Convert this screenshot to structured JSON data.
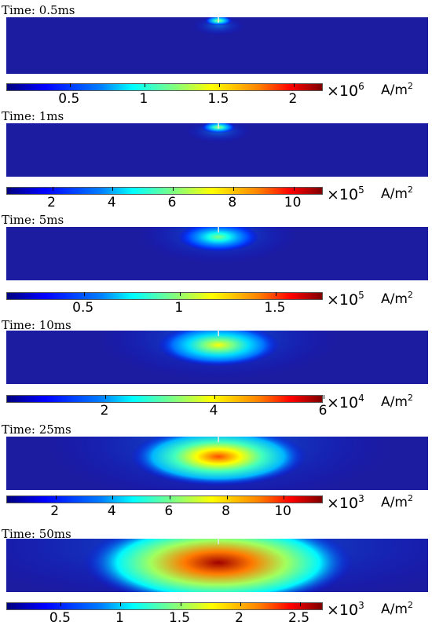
{
  "unit": {
    "base": "A/m",
    "exp": "2"
  },
  "panels": [
    {
      "time": "Time: 0.5ms",
      "mult_base": "×10",
      "mult_exp": "6",
      "ticks": [
        "0.5",
        "1",
        "1.5",
        "2"
      ],
      "tick_values": [
        0.5,
        1,
        1.5,
        2
      ],
      "range": [
        0.08,
        2.2
      ],
      "spot": {
        "intensity": 0.55,
        "rx_frac": 0.02,
        "ry_frac": 0.08
      }
    },
    {
      "time": "Time: 1ms",
      "mult_base": "×10",
      "mult_exp": "5",
      "ticks": [
        "2",
        "4",
        "6",
        "8",
        "10"
      ],
      "tick_values": [
        2,
        4,
        6,
        8,
        10
      ],
      "range": [
        0.5,
        11.0
      ],
      "spot": {
        "intensity": 0.55,
        "rx_frac": 0.025,
        "ry_frac": 0.1
      }
    },
    {
      "time": "Time: 5ms",
      "mult_base": "×10",
      "mult_exp": "5",
      "ticks": [
        "0.5",
        "1",
        "1.5"
      ],
      "tick_values": [
        0.5,
        1,
        1.5
      ],
      "range": [
        0.1,
        1.75
      ],
      "spot": {
        "intensity": 0.5,
        "rx_frac": 0.06,
        "ry_frac": 0.25
      }
    },
    {
      "time": "Time: 10ms",
      "mult_base": "×10",
      "mult_exp": "4",
      "ticks": [
        "2",
        "4",
        "6"
      ],
      "tick_values": [
        2,
        4,
        6
      ],
      "range": [
        0.2,
        6.0
      ],
      "spot": {
        "intensity": 0.62,
        "rx_frac": 0.09,
        "ry_frac": 0.36
      }
    },
    {
      "time": "Time: 25ms",
      "mult_base": "×10",
      "mult_exp": "3",
      "ticks": [
        "2",
        "4",
        "6",
        "8",
        "10"
      ],
      "tick_values": [
        2,
        4,
        6,
        8,
        10
      ],
      "range": [
        0.3,
        11.4
      ],
      "spot": {
        "intensity": 0.8,
        "rx_frac": 0.13,
        "ry_frac": 0.5
      }
    },
    {
      "time": "Time: 50ms",
      "mult_base": "×10",
      "mult_exp": "3",
      "ticks": [
        "0.5",
        "1",
        "1.5",
        "2",
        "2.5"
      ],
      "tick_values": [
        0.5,
        1,
        1.5,
        2,
        2.5
      ],
      "range": [
        0.05,
        2.7
      ],
      "spot": {
        "intensity": 0.97,
        "rx_frac": 0.2,
        "ry_frac": 0.75
      }
    }
  ],
  "chart_data": {
    "type": "heatmap",
    "title": "",
    "quantity_unit": "A/m^2",
    "frames": [
      {
        "time": "0.5ms",
        "colorbar_scale": "x10^6",
        "colorbar_ticks": [
          0.5,
          1,
          1.5,
          2
        ]
      },
      {
        "time": "1ms",
        "colorbar_scale": "x10^5",
        "colorbar_ticks": [
          2,
          4,
          6,
          8,
          10
        ]
      },
      {
        "time": "5ms",
        "colorbar_scale": "x10^5",
        "colorbar_ticks": [
          0.5,
          1,
          1.5
        ]
      },
      {
        "time": "10ms",
        "colorbar_scale": "x10^4",
        "colorbar_ticks": [
          2,
          4,
          6
        ]
      },
      {
        "time": "25ms",
        "colorbar_scale": "x10^3",
        "colorbar_ticks": [
          2,
          4,
          6,
          8,
          10
        ]
      },
      {
        "time": "50ms",
        "colorbar_scale": "x10^3",
        "colorbar_ticks": [
          0.5,
          1,
          1.5,
          2,
          2.5
        ]
      }
    ]
  },
  "colors": {
    "background_field": "#1a1aa6",
    "electrode": "#e8e8e8"
  }
}
